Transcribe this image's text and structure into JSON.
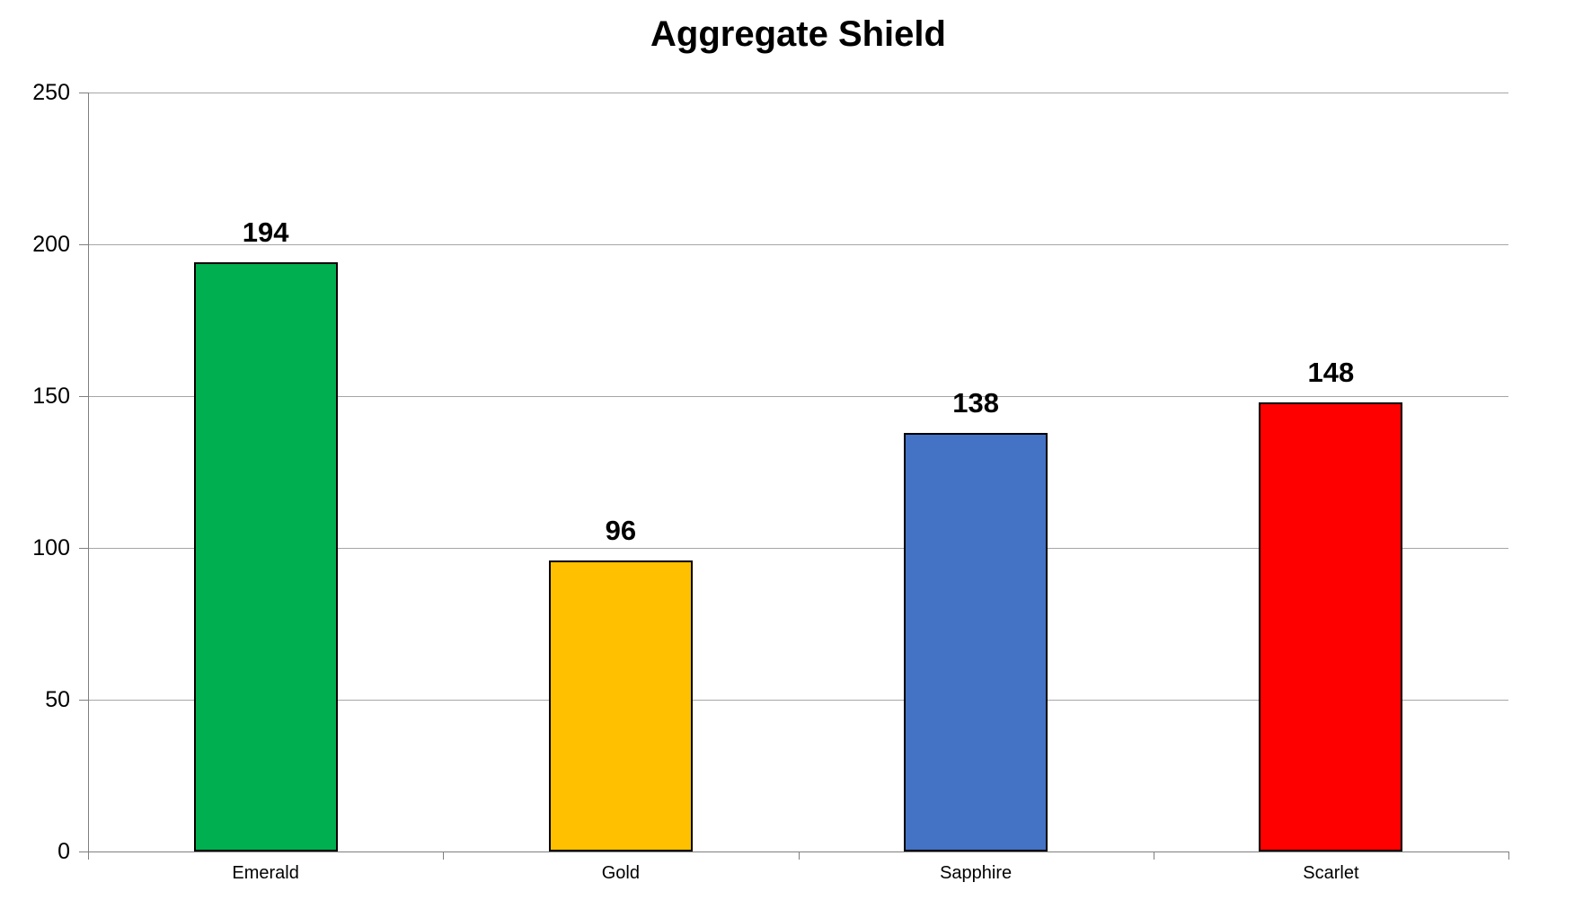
{
  "chart_data": {
    "type": "bar",
    "title": "Aggregate Shield",
    "categories": [
      "Emerald",
      "Gold",
      "Sapphire",
      "Scarlet"
    ],
    "values": [
      194,
      96,
      138,
      148
    ],
    "value_labels": [
      "194",
      "96",
      "138",
      "148"
    ],
    "bar_colors": [
      "#00B050",
      "#FFC000",
      "#4472C4",
      "#FF0000"
    ],
    "xlabel": "",
    "ylabel": "",
    "ylim": [
      0,
      250
    ],
    "yticks": [
      0,
      50,
      100,
      150,
      200,
      250
    ],
    "grid": true,
    "legend": false,
    "colors": {
      "gridline": "#A6A6A6",
      "axis": "#7F7F7F",
      "bar_border": "#000000",
      "text": "#000000",
      "background": "#FFFFFF"
    }
  }
}
